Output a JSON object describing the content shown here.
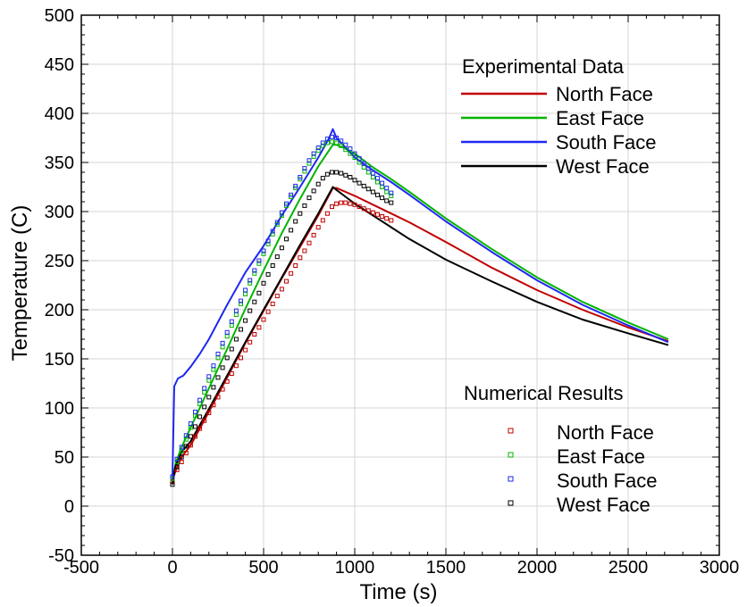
{
  "chart_data": {
    "type": "line",
    "title": "",
    "xlabel": "Time (s)",
    "ylabel": "Temperature (C)",
    "xlim": [
      -500,
      3000
    ],
    "ylim": [
      -50,
      500
    ],
    "x_ticks": [
      -500,
      0,
      500,
      1000,
      1500,
      2000,
      2500,
      3000
    ],
    "y_ticks": [
      -50,
      0,
      50,
      100,
      150,
      200,
      250,
      300,
      350,
      400,
      450,
      500
    ],
    "grid": true,
    "legend_experimental": {
      "title": "Experimental Data",
      "placement": "top-right",
      "entries": [
        "North Face",
        "East Face",
        "South Face",
        "West Face"
      ]
    },
    "legend_numerical": {
      "title": "Numerical Results",
      "placement": "bottom-right",
      "entries": [
        "North Face",
        "East Face",
        "South Face",
        "West Face"
      ]
    },
    "colors": {
      "North Face": "#c00000",
      "East Face": "#00b400",
      "South Face": "#1e28f0",
      "West Face": "#000000"
    },
    "experimental_series": [
      {
        "name": "North Face",
        "x": [
          0,
          15,
          50,
          100,
          200,
          300,
          400,
          500,
          600,
          700,
          800,
          880,
          900,
          950,
          1000,
          1100,
          1200,
          1300,
          1500,
          1750,
          2000,
          2250,
          2500,
          2720
        ],
        "y": [
          25,
          35,
          50,
          62,
          96,
          131,
          166,
          199,
          232,
          264,
          296,
          324,
          324,
          320,
          316,
          307,
          298,
          289,
          269,
          243,
          220,
          200,
          182,
          168
        ]
      },
      {
        "name": "East Face",
        "x": [
          0,
          20,
          50,
          100,
          200,
          300,
          400,
          500,
          600,
          700,
          800,
          880,
          900,
          950,
          1000,
          1100,
          1200,
          1300,
          1500,
          1750,
          2000,
          2250,
          2500,
          2720
        ],
        "y": [
          28,
          45,
          60,
          80,
          120,
          160,
          201,
          240,
          278,
          313,
          346,
          368,
          368,
          364,
          359,
          345,
          333,
          320,
          293,
          262,
          233,
          208,
          187,
          170
        ]
      },
      {
        "name": "South Face",
        "x": [
          0,
          10,
          30,
          60,
          100,
          150,
          200,
          300,
          400,
          500,
          600,
          700,
          800,
          860,
          880,
          900,
          950,
          1000,
          1100,
          1200,
          1300,
          1500,
          1750,
          2000,
          2250,
          2500,
          2720
        ],
        "y": [
          30,
          122,
          130,
          133,
          142,
          155,
          170,
          205,
          238,
          265,
          296,
          325,
          355,
          375,
          384,
          375,
          365,
          355,
          342,
          330,
          317,
          290,
          259,
          230,
          205,
          184,
          167
        ]
      },
      {
        "name": "West Face",
        "x": [
          0,
          15,
          50,
          100,
          200,
          300,
          400,
          500,
          600,
          700,
          800,
          880,
          900,
          950,
          1000,
          1100,
          1200,
          1300,
          1500,
          1750,
          2000,
          2250,
          2500,
          2720
        ],
        "y": [
          22,
          40,
          55,
          66,
          99,
          133,
          167,
          200,
          233,
          266,
          298,
          325,
          322,
          315,
          308,
          296,
          284,
          272,
          251,
          229,
          208,
          190,
          176,
          164
        ]
      }
    ],
    "numerical_series": [
      {
        "name": "North Face",
        "x": [
          0,
          25,
          50,
          75,
          100,
          125,
          150,
          175,
          200,
          225,
          250,
          275,
          300,
          325,
          350,
          375,
          400,
          425,
          450,
          475,
          500,
          525,
          550,
          575,
          600,
          625,
          650,
          675,
          700,
          725,
          750,
          775,
          800,
          825,
          850,
          875,
          900,
          925,
          950,
          975,
          1000,
          1025,
          1050,
          1075,
          1100,
          1125,
          1150,
          1175,
          1200
        ],
        "y": [
          25,
          37,
          45,
          54,
          62,
          71,
          79,
          87,
          95,
          103,
          111,
          119,
          127,
          135,
          143,
          151,
          159,
          167,
          175,
          182,
          190,
          198,
          206,
          214,
          221,
          229,
          237,
          245,
          253,
          260,
          268,
          276,
          284,
          291,
          298,
          305,
          308,
          309,
          309,
          308,
          307,
          305,
          303,
          301,
          299,
          297,
          295,
          293,
          291
        ]
      },
      {
        "name": "East Face",
        "x": [
          0,
          25,
          50,
          75,
          100,
          125,
          150,
          175,
          200,
          225,
          250,
          275,
          300,
          325,
          350,
          375,
          400,
          425,
          450,
          475,
          500,
          525,
          550,
          575,
          600,
          625,
          650,
          675,
          700,
          725,
          750,
          775,
          800,
          825,
          850,
          875,
          900,
          925,
          950,
          975,
          1000,
          1025,
          1050,
          1075,
          1100,
          1125,
          1150,
          1175,
          1200
        ],
        "y": [
          28,
          45,
          56,
          68,
          80,
          92,
          104,
          116,
          128,
          139,
          151,
          162,
          173,
          184,
          195,
          206,
          216,
          227,
          237,
          247,
          257,
          267,
          277,
          287,
          296,
          306,
          315,
          324,
          333,
          341,
          349,
          356,
          362,
          367,
          370,
          371,
          370,
          367,
          363,
          359,
          355,
          350,
          345,
          340,
          335,
          330,
          325,
          320,
          316
        ]
      },
      {
        "name": "South Face",
        "x": [
          0,
          25,
          50,
          75,
          100,
          125,
          150,
          175,
          200,
          225,
          250,
          275,
          300,
          325,
          350,
          375,
          400,
          425,
          450,
          475,
          500,
          525,
          550,
          575,
          600,
          625,
          650,
          675,
          700,
          725,
          750,
          775,
          800,
          825,
          850,
          875,
          900,
          925,
          950,
          975,
          1000,
          1025,
          1050,
          1075,
          1100,
          1125,
          1150,
          1175,
          1200
        ],
        "y": [
          30,
          48,
          60,
          72,
          84,
          96,
          108,
          120,
          132,
          143,
          155,
          166,
          177,
          188,
          199,
          209,
          220,
          230,
          240,
          250,
          260,
          270,
          280,
          289,
          299,
          308,
          317,
          326,
          335,
          344,
          352,
          359,
          365,
          370,
          374,
          376,
          375,
          372,
          368,
          364,
          359,
          354,
          349,
          344,
          339,
          334,
          329,
          324,
          319
        ]
      },
      {
        "name": "West Face",
        "x": [
          0,
          25,
          50,
          75,
          100,
          125,
          150,
          175,
          200,
          225,
          250,
          275,
          300,
          325,
          350,
          375,
          400,
          425,
          450,
          475,
          500,
          525,
          550,
          575,
          600,
          625,
          650,
          675,
          700,
          725,
          750,
          775,
          800,
          825,
          850,
          875,
          900,
          925,
          950,
          975,
          1000,
          1025,
          1050,
          1075,
          1100,
          1125,
          1150,
          1175,
          1200
        ],
        "y": [
          22,
          40,
          50,
          61,
          71,
          81,
          91,
          101,
          111,
          121,
          131,
          141,
          151,
          160,
          170,
          180,
          189,
          199,
          208,
          217,
          227,
          236,
          245,
          254,
          263,
          272,
          281,
          290,
          298,
          306,
          314,
          321,
          328,
          334,
          338,
          340,
          340,
          339,
          337,
          335,
          332,
          329,
          326,
          323,
          320,
          317,
          314,
          311,
          309
        ]
      }
    ]
  }
}
